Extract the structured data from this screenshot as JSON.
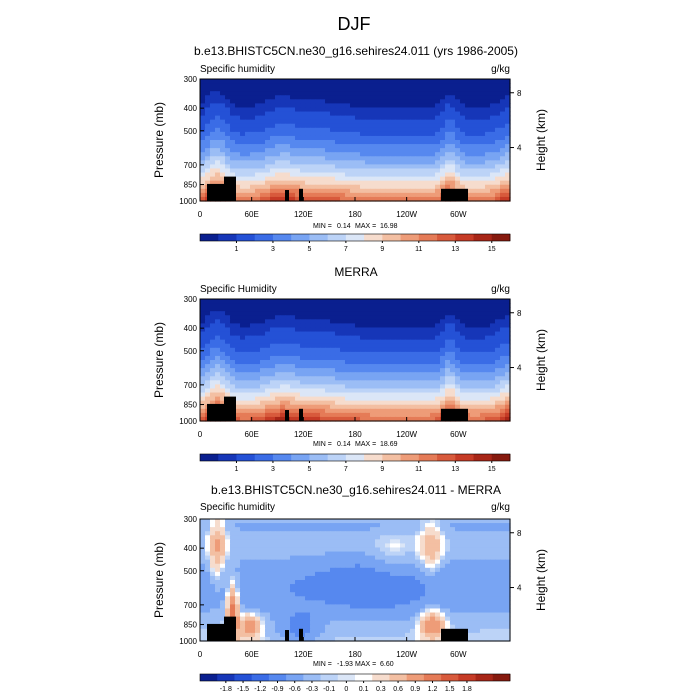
{
  "main_title": "DJF",
  "palettes": {
    "abs": [
      "#0a1f8f",
      "#1636b8",
      "#2451d6",
      "#3a6ce6",
      "#5688ef",
      "#78a4f3",
      "#9bbdf5",
      "#bcd3f7",
      "#dbe6f7",
      "#f6dccd",
      "#f3bfa2",
      "#ee9c78",
      "#e57b57",
      "#d85a3c",
      "#c63b26",
      "#a82617",
      "#861a0e"
    ],
    "diff": [
      "#0a1f8f",
      "#1636b8",
      "#2451d6",
      "#3a6ce6",
      "#5688ef",
      "#78a4f3",
      "#9bbdf5",
      "#bcd3f7",
      "#dbe6f7",
      "#ffffff",
      "#f6dccd",
      "#f3bfa2",
      "#ee9c78",
      "#e57b57",
      "#d85a3c",
      "#c63b26",
      "#a82617",
      "#861a0e"
    ]
  },
  "chart_data": [
    {
      "type": "heatmap",
      "name": "model",
      "title": "b.e13.BHISTC5CN.ne30_g16.sehires24.011 (yrs 1986-2005)",
      "left_label": "Specific humidity",
      "right_label": "g/kg",
      "ylabel": "Pressure (mb)",
      "ylabel_right": "Height (km)",
      "x_ticks": [
        "0",
        "60E",
        "120E",
        "180",
        "120W",
        "60W"
      ],
      "y_ticks": [
        "300",
        "400",
        "500",
        "700",
        "850",
        "1000"
      ],
      "right_ticks": [
        "8",
        "4"
      ],
      "min_label": "MIN =",
      "min_value": "0.14",
      "max_label": "MAX =",
      "max_value": "16.98",
      "colorbar_ticks": [
        "1",
        "3",
        "5",
        "7",
        "9",
        "11",
        "13",
        "15"
      ],
      "zmin": 0.14,
      "zmax": 16.98
    },
    {
      "type": "heatmap",
      "name": "merra",
      "title": "MERRA",
      "left_label": "Specific Humidity",
      "right_label": "g/kg",
      "ylabel": "Pressure (mb)",
      "ylabel_right": "Height (km)",
      "x_ticks": [
        "0",
        "60E",
        "120E",
        "180",
        "120W",
        "60W"
      ],
      "y_ticks": [
        "300",
        "400",
        "500",
        "700",
        "850",
        "1000"
      ],
      "right_ticks": [
        "8",
        "4"
      ],
      "min_label": "MIN =",
      "min_value": "0.14",
      "max_label": "MAX =",
      "max_value": "18.69",
      "colorbar_ticks": [
        "1",
        "3",
        "5",
        "7",
        "9",
        "11",
        "13",
        "15"
      ],
      "zmin": 0.14,
      "zmax": 18.69
    },
    {
      "type": "heatmap",
      "name": "diff",
      "title": "b.e13.BHISTC5CN.ne30_g16.sehires24.011 - MERRA",
      "left_label": "Specific humidity",
      "right_label": "g/kg",
      "ylabel": "Pressure (mb)",
      "ylabel_right": "Height (km)",
      "x_ticks": [
        "0",
        "60E",
        "120E",
        "180",
        "120W",
        "60W"
      ],
      "y_ticks": [
        "300",
        "400",
        "500",
        "700",
        "850",
        "1000"
      ],
      "right_ticks": [
        "8",
        "4"
      ],
      "min_label": "MIN =",
      "min_value": "-1.93",
      "max_label": "MAX =",
      "max_value": "6.60",
      "colorbar_ticks": [
        "-1.8",
        "-1.5",
        "-1.2",
        "-0.9",
        "-0.6",
        "-0.3",
        "-0.1",
        "0",
        "0.1",
        "0.3",
        "0.6",
        "0.9",
        "1.2",
        "1.5",
        "1.8"
      ],
      "zmin": -1.93,
      "zmax": 6.6
    }
  ]
}
